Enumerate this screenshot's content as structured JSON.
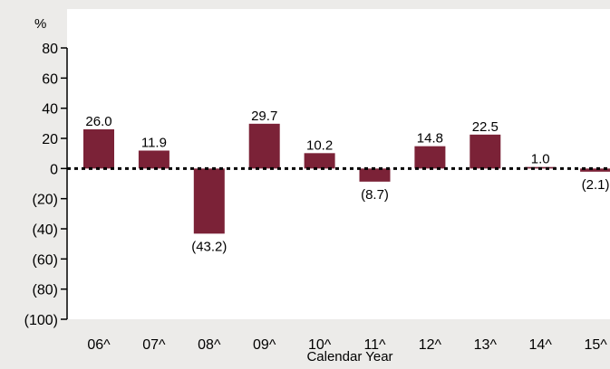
{
  "chart_data": {
    "type": "bar",
    "categories": [
      "06^",
      "07^",
      "08^",
      "09^",
      "10^",
      "11^",
      "12^",
      "13^",
      "14^",
      "15^"
    ],
    "values": [
      26.0,
      11.9,
      -43.2,
      29.7,
      10.2,
      -8.7,
      14.8,
      22.5,
      1.0,
      -2.1
    ],
    "data_labels": [
      "26.0",
      "11.9",
      "(43.2)",
      "29.7",
      "10.2",
      "(8.7)",
      "14.8",
      "22.5",
      "1.0",
      "(2.1)"
    ],
    "y_ticks": [
      80,
      60,
      40,
      20,
      0,
      -20,
      -40,
      -60,
      -80,
      -100
    ],
    "y_tick_labels": [
      "80",
      "60",
      "40",
      "20",
      "0",
      "(20)",
      "(40)",
      "(60)",
      "(80)",
      "(100)"
    ],
    "ylim": [
      -100,
      80
    ],
    "y_unit": "%",
    "xlabel": "Calendar Year",
    "zero_line": "dotted",
    "grid": false,
    "colors": {
      "bar": "#7b2237",
      "background": "#ecebe9",
      "plot": "#ffffff"
    }
  }
}
